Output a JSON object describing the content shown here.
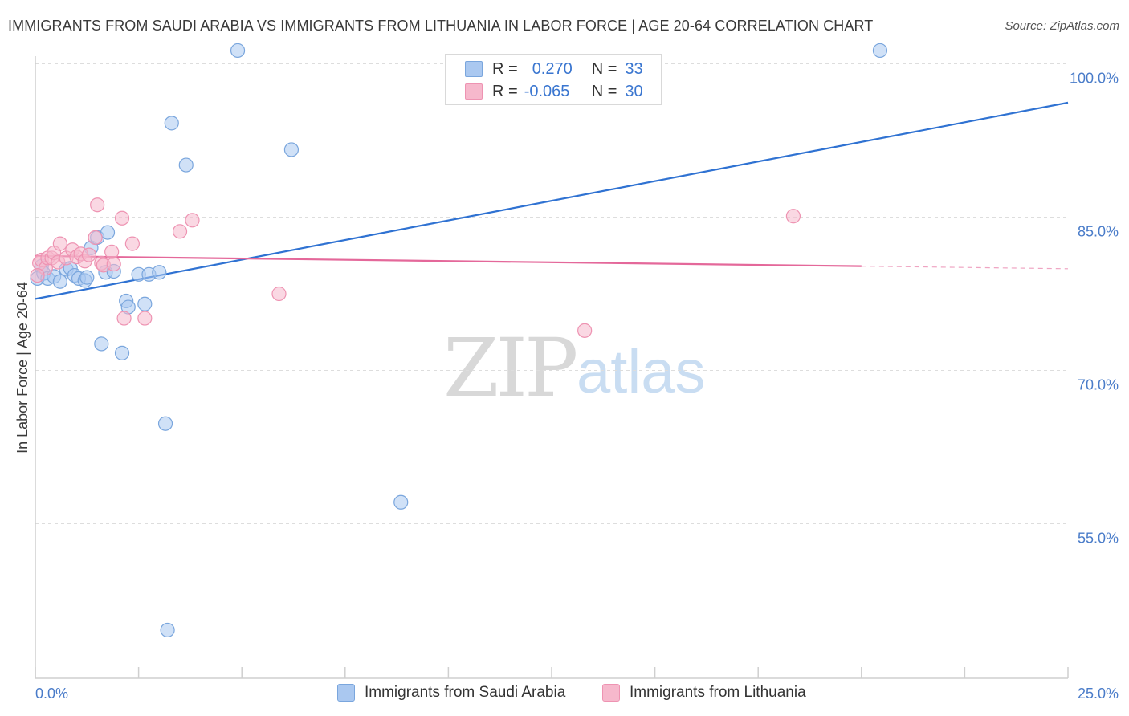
{
  "title": "IMMIGRANTS FROM SAUDI ARABIA VS IMMIGRANTS FROM LITHUANIA IN LABOR FORCE | AGE 20-64 CORRELATION CHART",
  "source": "Source: ZipAtlas.com",
  "watermark": {
    "zip": "ZIP",
    "atlas": "atlas"
  },
  "legend": {
    "r_label": "R =",
    "n_label": "N =",
    "series": [
      {
        "r": "0.270",
        "n": "33"
      },
      {
        "r": "-0.065",
        "n": "30"
      }
    ]
  },
  "colors": {
    "series1_fill": "#aac8f0",
    "series1_stroke": "#7aa6dd",
    "series1_line": "#2f72d2",
    "series2_fill": "#f6b8cc",
    "series2_stroke": "#ee93b2",
    "series2_line": "#e4689a",
    "grid": "#dddddd",
    "tick_text": "#4a7cc9"
  },
  "chart_data": {
    "type": "scatter",
    "title": "IMMIGRANTS FROM SAUDI ARABIA VS IMMIGRANTS FROM LITHUANIA IN LABOR FORCE | AGE 20-64 CORRELATION CHART",
    "xlabel": "",
    "ylabel": "In Labor Force | Age 20-64",
    "xlim": [
      0,
      25
    ],
    "ylim": [
      40,
      102
    ],
    "xticklabels": [
      "0.0%",
      "25.0%"
    ],
    "yticks": [
      55,
      70,
      85,
      100
    ],
    "yticklabels": [
      "55.0%",
      "70.0%",
      "85.0%",
      "100.0%"
    ],
    "legend_position": "top-center",
    "series": [
      {
        "name": "Immigrants from Saudi Arabia",
        "r": 0.27,
        "n": 33,
        "trend": {
          "x": [
            0,
            25
          ],
          "y": [
            77.0,
            96.2
          ]
        },
        "points": [
          {
            "x": 0.05,
            "y": 79.0
          },
          {
            "x": 0.15,
            "y": 80.2
          },
          {
            "x": 0.2,
            "y": 79.5
          },
          {
            "x": 0.3,
            "y": 79.0
          },
          {
            "x": 0.45,
            "y": 79.2
          },
          {
            "x": 0.6,
            "y": 78.7
          },
          {
            "x": 0.75,
            "y": 79.9
          },
          {
            "x": 0.85,
            "y": 80.0
          },
          {
            "x": 0.95,
            "y": 79.3
          },
          {
            "x": 1.05,
            "y": 79.0
          },
          {
            "x": 1.2,
            "y": 78.8
          },
          {
            "x": 1.25,
            "y": 79.1
          },
          {
            "x": 1.35,
            "y": 82.0
          },
          {
            "x": 1.5,
            "y": 83.0
          },
          {
            "x": 1.6,
            "y": 72.6
          },
          {
            "x": 1.7,
            "y": 79.6
          },
          {
            "x": 1.75,
            "y": 83.5
          },
          {
            "x": 1.9,
            "y": 79.7
          },
          {
            "x": 2.1,
            "y": 71.7
          },
          {
            "x": 2.2,
            "y": 76.8
          },
          {
            "x": 2.25,
            "y": 76.2
          },
          {
            "x": 2.5,
            "y": 79.4
          },
          {
            "x": 2.65,
            "y": 76.5
          },
          {
            "x": 2.75,
            "y": 79.4
          },
          {
            "x": 3.0,
            "y": 79.6
          },
          {
            "x": 3.15,
            "y": 64.8
          },
          {
            "x": 3.3,
            "y": 94.2
          },
          {
            "x": 3.65,
            "y": 90.1
          },
          {
            "x": 3.2,
            "y": 44.6
          },
          {
            "x": 4.9,
            "y": 101.3
          },
          {
            "x": 6.2,
            "y": 91.6
          },
          {
            "x": 8.85,
            "y": 57.1
          },
          {
            "x": 20.45,
            "y": 101.3
          }
        ]
      },
      {
        "name": "Immigrants from Lithuania",
        "r": -0.065,
        "n": 30,
        "trend": {
          "x": [
            0,
            20
          ],
          "y": [
            81.2,
            80.2
          ]
        },
        "trend_dashed": {
          "x": [
            20,
            25
          ],
          "y": [
            80.2,
            79.95
          ]
        },
        "points": [
          {
            "x": 0.1,
            "y": 80.5
          },
          {
            "x": 0.15,
            "y": 80.8
          },
          {
            "x": 0.25,
            "y": 80.0
          },
          {
            "x": 0.3,
            "y": 81.0
          },
          {
            "x": 0.4,
            "y": 81.0
          },
          {
            "x": 0.45,
            "y": 81.5
          },
          {
            "x": 0.55,
            "y": 80.6
          },
          {
            "x": 0.6,
            "y": 82.4
          },
          {
            "x": 0.75,
            "y": 81.0
          },
          {
            "x": 0.9,
            "y": 81.8
          },
          {
            "x": 1.0,
            "y": 81.1
          },
          {
            "x": 1.1,
            "y": 81.4
          },
          {
            "x": 1.2,
            "y": 80.7
          },
          {
            "x": 1.3,
            "y": 81.3
          },
          {
            "x": 1.45,
            "y": 83.0
          },
          {
            "x": 1.5,
            "y": 86.2
          },
          {
            "x": 1.6,
            "y": 80.5
          },
          {
            "x": 1.65,
            "y": 80.3
          },
          {
            "x": 1.85,
            "y": 81.6
          },
          {
            "x": 1.9,
            "y": 80.4
          },
          {
            "x": 2.1,
            "y": 84.9
          },
          {
            "x": 2.15,
            "y": 75.1
          },
          {
            "x": 2.35,
            "y": 82.4
          },
          {
            "x": 2.65,
            "y": 75.1
          },
          {
            "x": 3.5,
            "y": 83.6
          },
          {
            "x": 3.8,
            "y": 84.7
          },
          {
            "x": 5.9,
            "y": 77.5
          },
          {
            "x": 13.3,
            "y": 73.9
          },
          {
            "x": 18.35,
            "y": 85.1
          },
          {
            "x": 0.05,
            "y": 79.3
          }
        ]
      }
    ]
  }
}
